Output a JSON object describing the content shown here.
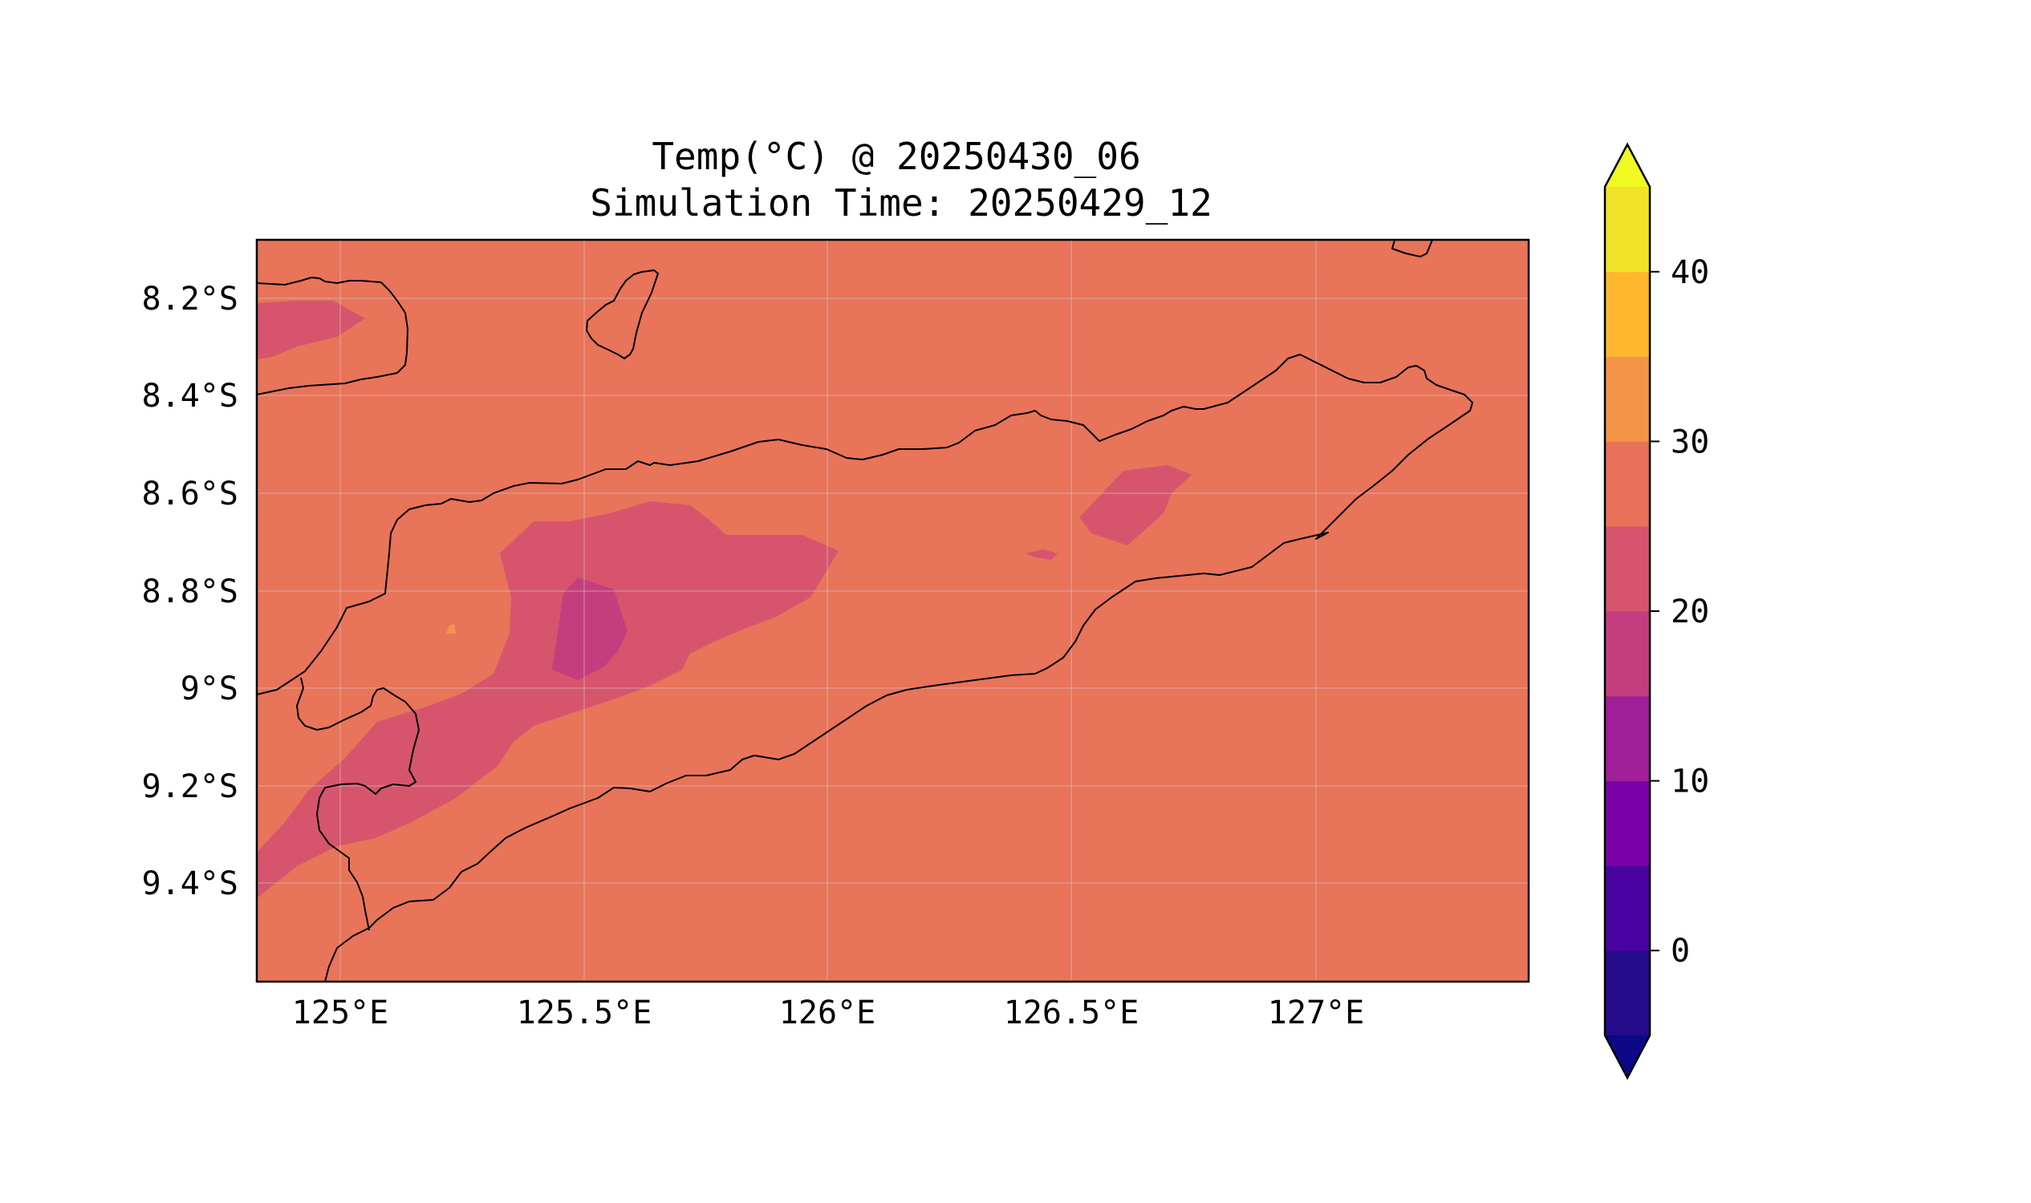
{
  "title_line1": "Temp(°C) @ 20250430_06",
  "title_line2": "Simulation Time: 20250429_12",
  "x_ticks": [
    "125°E",
    "125.5°E",
    "126°E",
    "126.5°E",
    "127°E"
  ],
  "y_ticks": [
    "8.2°S",
    "8.4°S",
    "8.6°S",
    "8.8°S",
    "9°S",
    "9.2°S",
    "9.4°S"
  ],
  "colorbar": {
    "ticks": [
      "0",
      "10",
      "20",
      "30",
      "40"
    ],
    "levels": [
      -5,
      0,
      5,
      10,
      15,
      20,
      25,
      30,
      35,
      40,
      45
    ],
    "colors": [
      "#230b8c",
      "#4a02a0",
      "#7b02a8",
      "#a11f99",
      "#c43e7f",
      "#d6556d",
      "#e8715a",
      "#f49446",
      "#feb72f",
      "#f2e22a"
    ],
    "under_color": "#0d0887",
    "over_color": "#f0f921",
    "extend": "both",
    "colormap": "plasma"
  },
  "chart_data": {
    "type": "contourf",
    "variable": "Temp(°C)",
    "valid_time": "20250430_06",
    "simulation_time": "20250429_12",
    "lon_range": [
      124.83,
      127.43
    ],
    "lat_range": [
      -9.6,
      -8.07
    ],
    "background_band": "25-30",
    "regions": [
      {
        "band": "20-25",
        "location": "western Timor interior, approx 125.2-126.0°E, 8.65-8.95°S"
      },
      {
        "band": "20-25",
        "location": "southwest coast, approx 124.83-125.3°E, 8.95-9.45°S"
      },
      {
        "band": "20-25",
        "location": "Alor (northwest), approx 124.83-125.0°E, 8.2-8.3°S"
      },
      {
        "band": "20-25",
        "location": "Ramelau highlands, approx 126.55-126.75°E, 8.6-8.7°S"
      },
      {
        "band": "15-20",
        "location": "approx 125.45-125.6°E, 8.78-8.96°S"
      },
      {
        "band": "30-35",
        "location": "small spot near 125.23°E, 8.86°S"
      }
    ],
    "grid": true
  }
}
